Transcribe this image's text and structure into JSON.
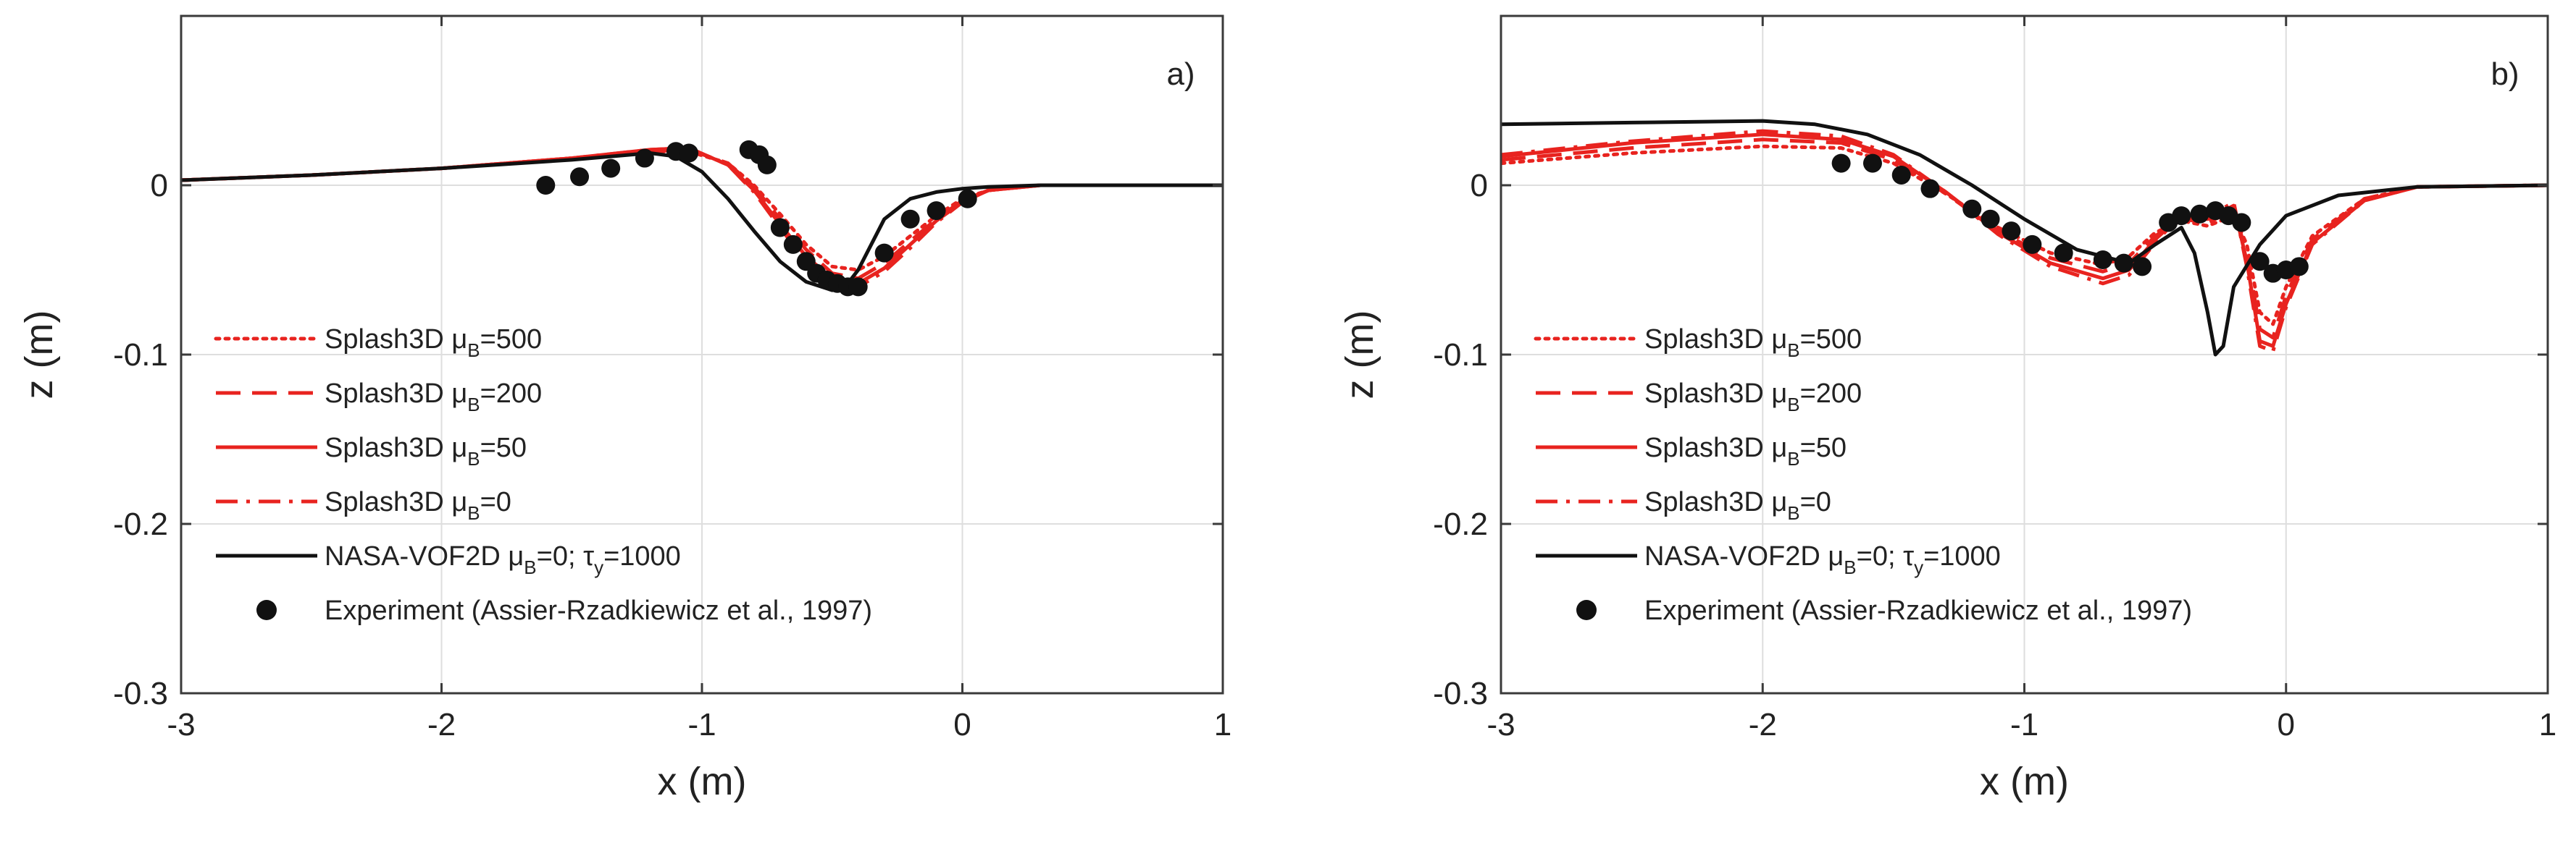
{
  "figure": {
    "panels": [
      "a",
      "b"
    ]
  },
  "chart_data": [
    {
      "type": "line",
      "panel_label": "a)",
      "xlabel": "x (m)",
      "ylabel": "z (m)",
      "xlim": [
        -3,
        1
      ],
      "ylim": [
        -0.3,
        0.1
      ],
      "xticks": [
        "-3",
        "-2",
        "-1",
        "0",
        "1"
      ],
      "yticks": [
        "0",
        "-0.1",
        "-0.2",
        "-0.3"
      ],
      "xtick_values": [
        -3,
        -2,
        -1,
        0,
        1
      ],
      "ytick_values": [
        0,
        -0.1,
        -0.2,
        -0.3
      ],
      "grid": true,
      "legend_position": "bottom-left",
      "series": [
        {
          "name": "Splash3D μB=500",
          "legend_main": "Splash3D μ",
          "legend_sub": "B",
          "legend_tail": "=500",
          "color": "#e8231f",
          "style": "dotted",
          "x": [
            -3.0,
            -2.5,
            -2.0,
            -1.5,
            -1.2,
            -1.05,
            -0.9,
            -0.8,
            -0.7,
            -0.6,
            -0.5,
            -0.4,
            -0.3,
            -0.2,
            -0.1,
            0.0,
            0.1,
            0.3,
            0.5,
            1.0
          ],
          "y": [
            0.003,
            0.006,
            0.01,
            0.016,
            0.02,
            0.02,
            0.013,
            0.0,
            -0.017,
            -0.035,
            -0.048,
            -0.05,
            -0.042,
            -0.03,
            -0.018,
            -0.008,
            -0.003,
            0.0,
            0.0,
            0.0
          ]
        },
        {
          "name": "Splash3D μB=200",
          "legend_main": "Splash3D μ",
          "legend_sub": "B",
          "legend_tail": "=200",
          "color": "#e8231f",
          "style": "dashed",
          "x": [
            -3.0,
            -2.5,
            -2.0,
            -1.5,
            -1.2,
            -1.05,
            -0.9,
            -0.8,
            -0.7,
            -0.6,
            -0.5,
            -0.4,
            -0.3,
            -0.2,
            -0.1,
            0.0,
            0.1,
            0.3,
            0.5,
            1.0
          ],
          "y": [
            0.003,
            0.006,
            0.01,
            0.016,
            0.02,
            0.021,
            0.013,
            -0.001,
            -0.02,
            -0.038,
            -0.052,
            -0.055,
            -0.046,
            -0.033,
            -0.02,
            -0.009,
            -0.003,
            0.0,
            0.0,
            0.0
          ]
        },
        {
          "name": "Splash3D μB=50",
          "legend_main": "Splash3D μ",
          "legend_sub": "B",
          "legend_tail": "=50",
          "color": "#e8231f",
          "style": "solid",
          "x": [
            -3.0,
            -2.5,
            -2.0,
            -1.5,
            -1.2,
            -1.05,
            -0.9,
            -0.8,
            -0.7,
            -0.6,
            -0.5,
            -0.4,
            -0.3,
            -0.2,
            -0.1,
            0.0,
            0.1,
            0.3,
            0.5,
            1.0
          ],
          "y": [
            0.003,
            0.006,
            0.01,
            0.016,
            0.021,
            0.022,
            0.012,
            -0.003,
            -0.023,
            -0.042,
            -0.055,
            -0.058,
            -0.049,
            -0.035,
            -0.021,
            -0.01,
            -0.003,
            0.0,
            0.0,
            0.0
          ]
        },
        {
          "name": "Splash3D μB=0",
          "legend_main": "Splash3D μ",
          "legend_sub": "B",
          "legend_tail": "=0",
          "color": "#e8231f",
          "style": "dashdot",
          "x": [
            -3.0,
            -2.5,
            -2.0,
            -1.5,
            -1.2,
            -1.05,
            -0.9,
            -0.8,
            -0.7,
            -0.6,
            -0.5,
            -0.4,
            -0.3,
            -0.2,
            -0.1,
            0.0,
            0.1,
            0.3,
            0.5,
            1.0
          ],
          "y": [
            0.003,
            0.006,
            0.01,
            0.016,
            0.021,
            0.022,
            0.012,
            -0.004,
            -0.025,
            -0.045,
            -0.058,
            -0.06,
            -0.051,
            -0.037,
            -0.022,
            -0.01,
            -0.003,
            0.0,
            0.0,
            0.0
          ]
        },
        {
          "name": "NASA-VOF2D μB=0; τy=1000",
          "legend_main": "NASA-VOF2D μ",
          "legend_sub": "B",
          "legend_tail": "=0; τ",
          "legend_sub2": "y",
          "legend_tail2": "=1000",
          "color": "#111111",
          "style": "solid",
          "x": [
            -3.0,
            -2.5,
            -2.0,
            -1.5,
            -1.2,
            -1.1,
            -1.0,
            -0.9,
            -0.8,
            -0.7,
            -0.6,
            -0.5,
            -0.45,
            -0.4,
            -0.3,
            -0.2,
            -0.1,
            0.0,
            0.1,
            0.3,
            1.0
          ],
          "y": [
            0.003,
            0.006,
            0.01,
            0.015,
            0.019,
            0.017,
            0.008,
            -0.008,
            -0.027,
            -0.045,
            -0.057,
            -0.062,
            -0.06,
            -0.05,
            -0.02,
            -0.008,
            -0.004,
            -0.002,
            -0.001,
            0.0,
            0.0
          ]
        },
        {
          "name": "Experiment (Assier-Rzadkiewicz et al., 1997)",
          "legend_main": "Experiment (Assier-Rzadkiewicz et al., 1997)",
          "color": "#111111",
          "style": "markers",
          "x": [
            -1.6,
            -1.47,
            -1.35,
            -1.22,
            -1.1,
            -1.05,
            -0.82,
            -0.78,
            -0.75,
            -0.7,
            -0.65,
            -0.6,
            -0.56,
            -0.52,
            -0.48,
            -0.44,
            -0.4,
            -0.3,
            -0.2,
            -0.1,
            0.02
          ],
          "y": [
            0.0,
            0.005,
            0.01,
            0.016,
            0.02,
            0.019,
            0.021,
            0.018,
            0.012,
            -0.025,
            -0.035,
            -0.045,
            -0.052,
            -0.056,
            -0.058,
            -0.06,
            -0.06,
            -0.04,
            -0.02,
            -0.015,
            -0.008
          ]
        }
      ]
    },
    {
      "type": "line",
      "panel_label": "b)",
      "xlabel": "x (m)",
      "ylabel": "z (m)",
      "xlim": [
        -3,
        1
      ],
      "ylim": [
        -0.3,
        0.1
      ],
      "xticks": [
        "-3",
        "-2",
        "-1",
        "0",
        "1"
      ],
      "yticks": [
        "0",
        "-0.1",
        "-0.2",
        "-0.3"
      ],
      "xtick_values": [
        -3,
        -2,
        -1,
        0,
        1
      ],
      "ytick_values": [
        0,
        -0.1,
        -0.2,
        -0.3
      ],
      "grid": true,
      "legend_position": "bottom-left",
      "series": [
        {
          "name": "Splash3D μB=500",
          "legend_main": "Splash3D μ",
          "legend_sub": "B",
          "legend_tail": "=500",
          "color": "#e8231f",
          "style": "dotted",
          "x": [
            -3.0,
            -2.5,
            -2.0,
            -1.7,
            -1.5,
            -1.3,
            -1.1,
            -0.9,
            -0.7,
            -0.6,
            -0.5,
            -0.4,
            -0.3,
            -0.2,
            -0.15,
            -0.1,
            -0.05,
            0.0,
            0.1,
            0.3,
            0.5,
            1.0
          ],
          "y": [
            0.013,
            0.019,
            0.023,
            0.022,
            0.013,
            -0.005,
            -0.025,
            -0.04,
            -0.047,
            -0.042,
            -0.028,
            -0.021,
            -0.024,
            -0.018,
            -0.035,
            -0.075,
            -0.082,
            -0.06,
            -0.03,
            -0.008,
            -0.001,
            0.0
          ]
        },
        {
          "name": "Splash3D μB=200",
          "legend_main": "Splash3D μ",
          "legend_sub": "B",
          "legend_tail": "=200",
          "color": "#e8231f",
          "style": "dashed",
          "x": [
            -3.0,
            -2.5,
            -2.0,
            -1.7,
            -1.5,
            -1.3,
            -1.1,
            -0.9,
            -0.7,
            -0.6,
            -0.5,
            -0.4,
            -0.3,
            -0.2,
            -0.15,
            -0.1,
            -0.05,
            0.0,
            0.1,
            0.3,
            0.5,
            1.0
          ],
          "y": [
            0.015,
            0.022,
            0.027,
            0.025,
            0.015,
            -0.005,
            -0.027,
            -0.043,
            -0.051,
            -0.046,
            -0.03,
            -0.02,
            -0.022,
            -0.015,
            -0.04,
            -0.085,
            -0.09,
            -0.065,
            -0.032,
            -0.008,
            -0.001,
            0.0
          ]
        },
        {
          "name": "Splash3D μB=50",
          "legend_main": "Splash3D μ",
          "legend_sub": "B",
          "legend_tail": "=50",
          "color": "#e8231f",
          "style": "solid",
          "x": [
            -3.0,
            -2.5,
            -2.0,
            -1.7,
            -1.5,
            -1.3,
            -1.1,
            -0.9,
            -0.7,
            -0.6,
            -0.5,
            -0.4,
            -0.3,
            -0.2,
            -0.15,
            -0.1,
            -0.05,
            0.0,
            0.1,
            0.3,
            0.5,
            1.0
          ],
          "y": [
            0.017,
            0.025,
            0.03,
            0.027,
            0.017,
            -0.004,
            -0.028,
            -0.046,
            -0.055,
            -0.05,
            -0.032,
            -0.018,
            -0.02,
            -0.012,
            -0.045,
            -0.092,
            -0.095,
            -0.07,
            -0.034,
            -0.009,
            -0.001,
            0.0
          ]
        },
        {
          "name": "Splash3D μB=0",
          "legend_main": "Splash3D μ",
          "legend_sub": "B",
          "legend_tail": "=0",
          "color": "#e8231f",
          "style": "dashdot",
          "x": [
            -3.0,
            -2.5,
            -2.0,
            -1.7,
            -1.5,
            -1.3,
            -1.1,
            -0.9,
            -0.7,
            -0.6,
            -0.5,
            -0.4,
            -0.3,
            -0.2,
            -0.15,
            -0.1,
            -0.05,
            0.0,
            0.1,
            0.3,
            0.5,
            1.0
          ],
          "y": [
            0.018,
            0.026,
            0.032,
            0.029,
            0.018,
            -0.004,
            -0.029,
            -0.048,
            -0.058,
            -0.053,
            -0.034,
            -0.017,
            -0.019,
            -0.01,
            -0.048,
            -0.095,
            -0.098,
            -0.072,
            -0.035,
            -0.009,
            -0.001,
            0.0
          ]
        },
        {
          "name": "NASA-VOF2D μB=0; τy=1000",
          "legend_main": "NASA-VOF2D μ",
          "legend_sub": "B",
          "legend_tail": "=0; τ",
          "legend_sub2": "y",
          "legend_tail2": "=1000",
          "color": "#111111",
          "style": "solid",
          "x": [
            -3.0,
            -2.5,
            -2.0,
            -1.8,
            -1.6,
            -1.4,
            -1.2,
            -1.0,
            -0.8,
            -0.6,
            -0.5,
            -0.4,
            -0.35,
            -0.3,
            -0.27,
            -0.24,
            -0.2,
            -0.1,
            0.0,
            0.2,
            0.5,
            1.0
          ],
          "y": [
            0.036,
            0.037,
            0.038,
            0.036,
            0.03,
            0.018,
            0.0,
            -0.02,
            -0.038,
            -0.046,
            -0.035,
            -0.025,
            -0.04,
            -0.075,
            -0.1,
            -0.095,
            -0.06,
            -0.035,
            -0.018,
            -0.006,
            -0.001,
            0.0
          ]
        },
        {
          "name": "Experiment (Assier-Rzadkiewicz et al., 1997)",
          "legend_main": "Experiment (Assier-Rzadkiewicz et al., 1997)",
          "color": "#111111",
          "style": "markers",
          "x": [
            -1.7,
            -1.58,
            -1.47,
            -1.36,
            -1.2,
            -1.13,
            -1.05,
            -0.97,
            -0.85,
            -0.7,
            -0.62,
            -0.55,
            -0.45,
            -0.4,
            -0.33,
            -0.27,
            -0.22,
            -0.17,
            -0.1,
            -0.05,
            0.0,
            0.05
          ],
          "y": [
            0.013,
            0.013,
            0.006,
            -0.002,
            -0.014,
            -0.02,
            -0.027,
            -0.035,
            -0.04,
            -0.044,
            -0.046,
            -0.048,
            -0.022,
            -0.018,
            -0.017,
            -0.015,
            -0.018,
            -0.022,
            -0.045,
            -0.052,
            -0.05,
            -0.048
          ]
        }
      ]
    }
  ]
}
